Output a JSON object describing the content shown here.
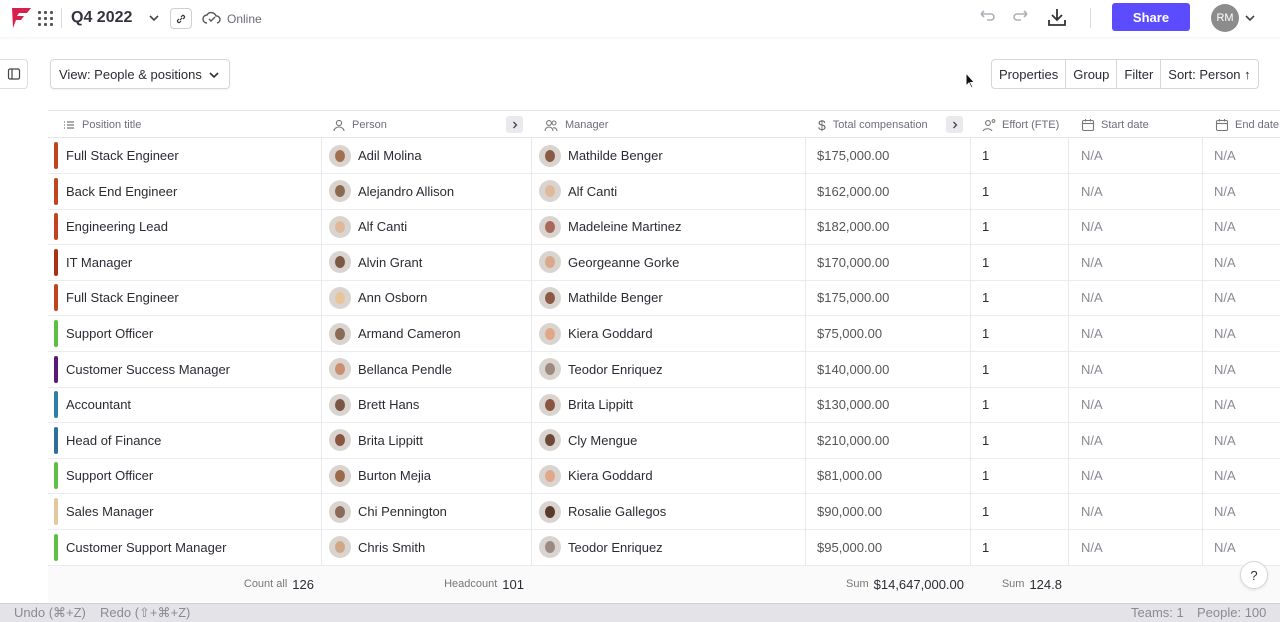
{
  "header": {
    "title": "Q4 2022",
    "status": "Online",
    "share_label": "Share",
    "avatar_initials": "RM",
    "brand_color": "#d6204f",
    "share_color": "#5b4dff"
  },
  "viewbar": {
    "view_label": "View: People & positions",
    "properties_label": "Properties",
    "group_label": "Group",
    "filter_label": "Filter",
    "sort_label": "Sort: Person ↑"
  },
  "columns": {
    "position": "Position title",
    "person": "Person",
    "manager": "Manager",
    "compensation": "Total compensation",
    "effort": "Effort (FTE)",
    "start": "Start date",
    "end": "End date"
  },
  "rows": [
    {
      "position": "Full Stack Engineer",
      "color": "#c0441c",
      "person": "Adil Molina",
      "manager": "Mathilde Benger",
      "comp": "$175,000.00",
      "effort": "1",
      "start": "N/A",
      "end": "N/A",
      "p_skin": "#a0714f",
      "m_skin": "#8a5a44"
    },
    {
      "position": "Back End Engineer",
      "color": "#c0441c",
      "person": "Alejandro Allison",
      "manager": "Alf Canti",
      "comp": "$162,000.00",
      "effort": "1",
      "start": "N/A",
      "end": "N/A",
      "p_skin": "#8b6a52",
      "m_skin": "#e0b99a"
    },
    {
      "position": "Engineering Lead",
      "color": "#c0441c",
      "person": "Alf Canti",
      "manager": "Madeleine Martinez",
      "comp": "$182,000.00",
      "effort": "1",
      "start": "N/A",
      "end": "N/A",
      "p_skin": "#e0b99a",
      "m_skin": "#a8685a"
    },
    {
      "position": "IT Manager",
      "color": "#a83218",
      "person": "Alvin Grant",
      "manager": "Georgeanne Gorke",
      "comp": "$170,000.00",
      "effort": "1",
      "start": "N/A",
      "end": "N/A",
      "p_skin": "#7a5a45",
      "m_skin": "#d8a98a"
    },
    {
      "position": "Full Stack Engineer",
      "color": "#c0441c",
      "person": "Ann Osborn",
      "manager": "Mathilde Benger",
      "comp": "$175,000.00",
      "effort": "1",
      "start": "N/A",
      "end": "N/A",
      "p_skin": "#e8c49a",
      "m_skin": "#8a5a44"
    },
    {
      "position": "Support Officer",
      "color": "#5cc043",
      "person": "Armand Cameron",
      "manager": "Kiera Goddard",
      "comp": "$75,000.00",
      "effort": "1",
      "start": "N/A",
      "end": "N/A",
      "p_skin": "#8a6b55",
      "m_skin": "#e0a888"
    },
    {
      "position": "Customer Success Manager",
      "color": "#5a1a7a",
      "person": "Bellanca Pendle",
      "manager": "Teodor Enriquez",
      "comp": "$140,000.00",
      "effort": "1",
      "start": "N/A",
      "end": "N/A",
      "p_skin": "#c98f70",
      "m_skin": "#9a8a80"
    },
    {
      "position": "Accountant",
      "color": "#2e7fa8",
      "person": "Brett Hans",
      "manager": "Brita Lippitt",
      "comp": "$130,000.00",
      "effort": "1",
      "start": "N/A",
      "end": "N/A",
      "p_skin": "#7a5546",
      "m_skin": "#8a5540"
    },
    {
      "position": "Head of Finance",
      "color": "#2e6f98",
      "person": "Brita Lippitt",
      "manager": "Cly Mengue",
      "comp": "$210,000.00",
      "effort": "1",
      "start": "N/A",
      "end": "N/A",
      "p_skin": "#8a5540",
      "m_skin": "#6a4a36"
    },
    {
      "position": "Support Officer",
      "color": "#5cc043",
      "person": "Burton Mejia",
      "manager": "Kiera Goddard",
      "comp": "$81,000.00",
      "effort": "1",
      "start": "N/A",
      "end": "N/A",
      "p_skin": "#9a6a4a",
      "m_skin": "#e0a888"
    },
    {
      "position": "Sales Manager",
      "color": "#e3c9a0",
      "person": "Chi Pennington",
      "manager": "Rosalie Gallegos",
      "comp": "$90,000.00",
      "effort": "1",
      "start": "N/A",
      "end": "N/A",
      "p_skin": "#8a6a5a",
      "m_skin": "#5a3a2a"
    },
    {
      "position": "Customer Support Manager",
      "color": "#5cc043",
      "person": "Chris Smith",
      "manager": "Teodor Enriquez",
      "comp": "$95,000.00",
      "effort": "1",
      "start": "N/A",
      "end": "N/A",
      "p_skin": "#d0a888",
      "m_skin": "#9a8a80"
    }
  ],
  "footer": {
    "count_label": "Count all",
    "count_value": "126",
    "headcount_label": "Headcount",
    "headcount_value": "101",
    "sum_comp_label": "Sum",
    "sum_comp_value": "$14,647,000.00",
    "sum_effort_label": "Sum",
    "sum_effort_value": "124.8"
  },
  "statusbar": {
    "undo": "Undo (⌘+Z)",
    "redo": "Redo (⇧+⌘+Z)",
    "teams": "Teams: 1",
    "people": "People: 100"
  },
  "help_label": "?"
}
